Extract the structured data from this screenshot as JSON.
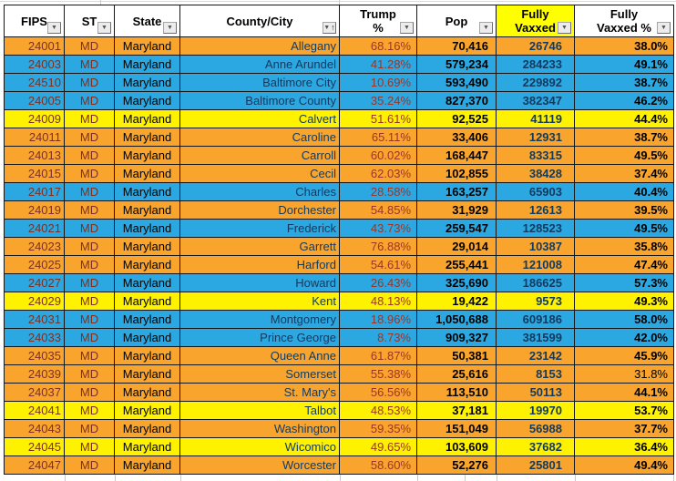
{
  "icons": {
    "dropdown": "▼",
    "sort_asc": "↑"
  },
  "colors": {
    "row_orange": "#F9A42C",
    "row_blue": "#2BA7E1",
    "row_yellow": "#FEF200",
    "header_highlight": "#FFFF00",
    "fips_text": "#7E3122",
    "trump_text": "#9E3425",
    "navy_text": "#123A5F"
  },
  "table": {
    "columns": [
      {
        "id": "fips",
        "label": "FIPS",
        "filter": "dropdown"
      },
      {
        "id": "st",
        "label": "ST",
        "filter": "dropdown"
      },
      {
        "id": "state",
        "label": "State",
        "filter": "dropdown"
      },
      {
        "id": "county",
        "label": "County/City",
        "filter": "dropdown-sorted-ascending"
      },
      {
        "id": "trump_pct",
        "label": "Trump\n%",
        "filter": "dropdown"
      },
      {
        "id": "pop",
        "label": "Pop",
        "filter": "dropdown"
      },
      {
        "id": "fully_vaxxed",
        "label": "Fully\nVaxxed",
        "filter": "dropdown",
        "highlight": true
      },
      {
        "id": "fully_vaxxed_pct",
        "label": "Fully\nVaxxed %",
        "filter": "dropdown"
      }
    ],
    "rows": [
      {
        "fips": "24001",
        "st": "MD",
        "state": "Maryland",
        "county": "Allegany",
        "trump_pct": "68.16%",
        "pop": "70,416",
        "fully_vaxxed": "26746",
        "fully_vaxxed_pct": "38.0%",
        "color": "orange"
      },
      {
        "fips": "24003",
        "st": "MD",
        "state": "Maryland",
        "county": "Anne Arundel",
        "trump_pct": "41.28%",
        "pop": "579,234",
        "fully_vaxxed": "284233",
        "fully_vaxxed_pct": "49.1%",
        "color": "blue"
      },
      {
        "fips": "24510",
        "st": "MD",
        "state": "Maryland",
        "county": "Baltimore City",
        "trump_pct": "10.69%",
        "pop": "593,490",
        "fully_vaxxed": "229892",
        "fully_vaxxed_pct": "38.7%",
        "color": "blue"
      },
      {
        "fips": "24005",
        "st": "MD",
        "state": "Maryland",
        "county": "Baltimore County",
        "trump_pct": "35.24%",
        "pop": "827,370",
        "fully_vaxxed": "382347",
        "fully_vaxxed_pct": "46.2%",
        "color": "blue"
      },
      {
        "fips": "24009",
        "st": "MD",
        "state": "Maryland",
        "county": "Calvert",
        "trump_pct": "51.61%",
        "pop": "92,525",
        "fully_vaxxed": "41119",
        "fully_vaxxed_pct": "44.4%",
        "color": "yellow"
      },
      {
        "fips": "24011",
        "st": "MD",
        "state": "Maryland",
        "county": "Caroline",
        "trump_pct": "65.11%",
        "pop": "33,406",
        "fully_vaxxed": "12931",
        "fully_vaxxed_pct": "38.7%",
        "color": "orange"
      },
      {
        "fips": "24013",
        "st": "MD",
        "state": "Maryland",
        "county": "Carroll",
        "trump_pct": "60.02%",
        "pop": "168,447",
        "fully_vaxxed": "83315",
        "fully_vaxxed_pct": "49.5%",
        "color": "orange"
      },
      {
        "fips": "24015",
        "st": "MD",
        "state": "Maryland",
        "county": "Cecil",
        "trump_pct": "62.03%",
        "pop": "102,855",
        "fully_vaxxed": "38428",
        "fully_vaxxed_pct": "37.4%",
        "color": "orange"
      },
      {
        "fips": "24017",
        "st": "MD",
        "state": "Maryland",
        "county": "Charles",
        "trump_pct": "28.58%",
        "pop": "163,257",
        "fully_vaxxed": "65903",
        "fully_vaxxed_pct": "40.4%",
        "color": "blue"
      },
      {
        "fips": "24019",
        "st": "MD",
        "state": "Maryland",
        "county": "Dorchester",
        "trump_pct": "54.85%",
        "pop": "31,929",
        "fully_vaxxed": "12613",
        "fully_vaxxed_pct": "39.5%",
        "color": "orange"
      },
      {
        "fips": "24021",
        "st": "MD",
        "state": "Maryland",
        "county": "Frederick",
        "trump_pct": "43.73%",
        "pop": "259,547",
        "fully_vaxxed": "128523",
        "fully_vaxxed_pct": "49.5%",
        "color": "blue"
      },
      {
        "fips": "24023",
        "st": "MD",
        "state": "Maryland",
        "county": "Garrett",
        "trump_pct": "76.88%",
        "pop": "29,014",
        "fully_vaxxed": "10387",
        "fully_vaxxed_pct": "35.8%",
        "color": "orange"
      },
      {
        "fips": "24025",
        "st": "MD",
        "state": "Maryland",
        "county": "Harford",
        "trump_pct": "54.61%",
        "pop": "255,441",
        "fully_vaxxed": "121008",
        "fully_vaxxed_pct": "47.4%",
        "color": "orange"
      },
      {
        "fips": "24027",
        "st": "MD",
        "state": "Maryland",
        "county": "Howard",
        "trump_pct": "26.43%",
        "pop": "325,690",
        "fully_vaxxed": "186625",
        "fully_vaxxed_pct": "57.3%",
        "color": "blue"
      },
      {
        "fips": "24029",
        "st": "MD",
        "state": "Maryland",
        "county": "Kent",
        "trump_pct": "48.13%",
        "pop": "19,422",
        "fully_vaxxed": "9573",
        "fully_vaxxed_pct": "49.3%",
        "color": "yellow"
      },
      {
        "fips": "24031",
        "st": "MD",
        "state": "Maryland",
        "county": "Montgomery",
        "trump_pct": "18.96%",
        "pop": "1,050,688",
        "fully_vaxxed": "609186",
        "fully_vaxxed_pct": "58.0%",
        "color": "blue"
      },
      {
        "fips": "24033",
        "st": "MD",
        "state": "Maryland",
        "county": "Prince George",
        "trump_pct": "8.73%",
        "pop": "909,327",
        "fully_vaxxed": "381599",
        "fully_vaxxed_pct": "42.0%",
        "color": "blue"
      },
      {
        "fips": "24035",
        "st": "MD",
        "state": "Maryland",
        "county": "Queen Anne",
        "trump_pct": "61.87%",
        "pop": "50,381",
        "fully_vaxxed": "23142",
        "fully_vaxxed_pct": "45.9%",
        "color": "orange"
      },
      {
        "fips": "24039",
        "st": "MD",
        "state": "Maryland",
        "county": "Somerset",
        "trump_pct": "55.38%",
        "pop": "25,616",
        "fully_vaxxed": "8153",
        "fully_vaxxed_pct": "31.8%",
        "color": "orange",
        "pct_bold": false
      },
      {
        "fips": "24037",
        "st": "MD",
        "state": "Maryland",
        "county": "St. Mary's",
        "trump_pct": "56.56%",
        "pop": "113,510",
        "fully_vaxxed": "50113",
        "fully_vaxxed_pct": "44.1%",
        "color": "orange"
      },
      {
        "fips": "24041",
        "st": "MD",
        "state": "Maryland",
        "county": "Talbot",
        "trump_pct": "48.53%",
        "pop": "37,181",
        "fully_vaxxed": "19970",
        "fully_vaxxed_pct": "53.7%",
        "color": "yellow"
      },
      {
        "fips": "24043",
        "st": "MD",
        "state": "Maryland",
        "county": "Washington",
        "trump_pct": "59.35%",
        "pop": "151,049",
        "fully_vaxxed": "56988",
        "fully_vaxxed_pct": "37.7%",
        "color": "orange"
      },
      {
        "fips": "24045",
        "st": "MD",
        "state": "Maryland",
        "county": "Wicomico",
        "trump_pct": "49.65%",
        "pop": "103,609",
        "fully_vaxxed": "37682",
        "fully_vaxxed_pct": "36.4%",
        "color": "yellow"
      },
      {
        "fips": "24047",
        "st": "MD",
        "state": "Maryland",
        "county": "Worcester",
        "trump_pct": "58.60%",
        "pop": "52,276",
        "fully_vaxxed": "25801",
        "fully_vaxxed_pct": "49.4%",
        "color": "orange"
      }
    ]
  }
}
